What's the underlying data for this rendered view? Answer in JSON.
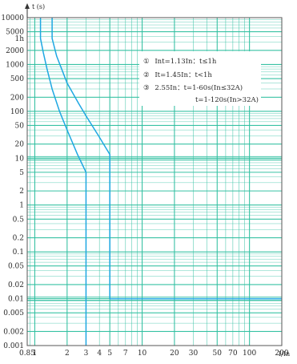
{
  "chart_data": {
    "type": "line",
    "ylabel": "t (s)",
    "xlabel": "I/In",
    "x_scale": "log",
    "y_scale": "log",
    "xlim": [
      0.85,
      200
    ],
    "ylim": [
      0.001,
      10000
    ],
    "grid": true,
    "colors": {
      "grid": "#2fbfa0",
      "curve": "#1ea7e2",
      "frame": "#555555"
    },
    "x_ticks": [
      {
        "value": 0.85,
        "label": "0.85"
      },
      {
        "value": 1,
        "label": "1"
      },
      {
        "value": 2,
        "label": "2"
      },
      {
        "value": 3,
        "label": "3"
      },
      {
        "value": 4,
        "label": "4"
      },
      {
        "value": 5,
        "label": "5"
      },
      {
        "value": 7,
        "label": "7"
      },
      {
        "value": 10,
        "label": "10"
      },
      {
        "value": 20,
        "label": "20"
      },
      {
        "value": 30,
        "label": "30"
      },
      {
        "value": 50,
        "label": "50"
      },
      {
        "value": 70,
        "label": "70"
      },
      {
        "value": 100,
        "label": "100"
      },
      {
        "value": 200,
        "label": "200"
      }
    ],
    "y_ticks": [
      {
        "value": 10000,
        "label": "10000"
      },
      {
        "value": 5000,
        "label": "5000"
      },
      {
        "value": 3600,
        "label": "1h"
      },
      {
        "value": 2000,
        "label": "2000"
      },
      {
        "value": 1000,
        "label": "1000"
      },
      {
        "value": 500,
        "label": "500"
      },
      {
        "value": 200,
        "label": "200"
      },
      {
        "value": 100,
        "label": "100"
      },
      {
        "value": 50,
        "label": "50"
      },
      {
        "value": 20,
        "label": "20"
      },
      {
        "value": 10,
        "label": "10"
      },
      {
        "value": 5,
        "label": "5"
      },
      {
        "value": 2,
        "label": "2"
      },
      {
        "value": 1,
        "label": "1"
      },
      {
        "value": 0.5,
        "label": "0.5"
      },
      {
        "value": 0.2,
        "label": "0.2"
      },
      {
        "value": 0.1,
        "label": "0.1"
      },
      {
        "value": 0.05,
        "label": "0.05"
      },
      {
        "value": 0.02,
        "label": "0.02"
      },
      {
        "value": 0.01,
        "label": "0.01"
      },
      {
        "value": 0.005,
        "label": "0.005"
      },
      {
        "value": 0.002,
        "label": "0.002"
      },
      {
        "value": 0.001,
        "label": "0.001"
      }
    ],
    "series": [
      {
        "x": [
          1.13,
          1.13,
          1.2,
          1.3,
          1.45,
          1.7,
          2.0,
          2.5,
          3.0,
          3.0
        ],
        "y": [
          10000,
          3600,
          1800,
          800,
          300,
          100,
          40,
          12,
          5,
          0.001
        ]
      },
      {
        "x": [
          1.45,
          1.45,
          1.6,
          2.0,
          2.55,
          3.0,
          4.0,
          5.0,
          5.0,
          5.0,
          200
        ],
        "y": [
          10000,
          3600,
          1500,
          400,
          150,
          80,
          28,
          12,
          0.5,
          0.01,
          0.01
        ]
      }
    ],
    "annotations": [
      {
        "marker": "①",
        "text": "Int=1.13In：t≤1h"
      },
      {
        "marker": "②",
        "text": "It=1.45In：t<1h"
      },
      {
        "marker": "③",
        "text": "2.55In：t=1-60s(In≤32A)"
      },
      {
        "marker": "",
        "text": "t=1-120s(In>32A)"
      }
    ]
  }
}
